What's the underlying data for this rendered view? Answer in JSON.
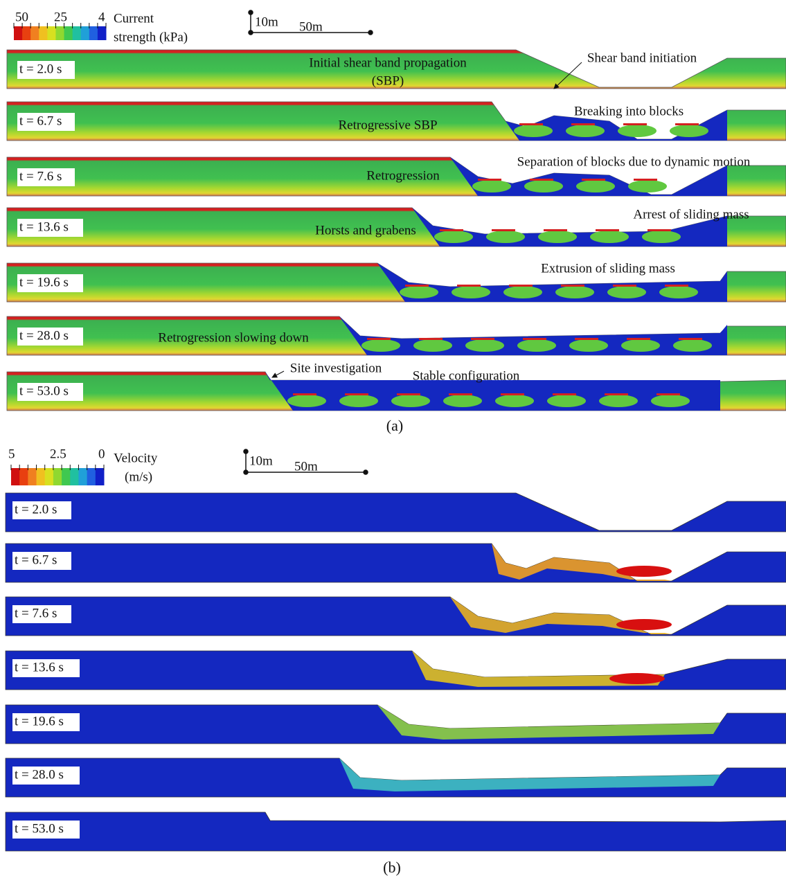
{
  "panel_a": {
    "legend": {
      "ticks": [
        "50",
        "25",
        "4"
      ],
      "title": [
        "Current",
        "strength (kPa)"
      ]
    },
    "scale": {
      "vertical": "10m",
      "horizontal": "50m"
    },
    "frames": [
      {
        "time": "t = 2.0 s",
        "annotations": [
          "Initial shear band propagation",
          "(SBP)",
          "Shear band initiation"
        ]
      },
      {
        "time": "t = 6.7 s",
        "annotations": [
          "Breaking into blocks",
          "Retrogressive SBP"
        ]
      },
      {
        "time": "t = 7.6 s",
        "annotations": [
          "Separation of blocks due to dynamic motion",
          "Retrogression"
        ]
      },
      {
        "time": "t = 13.6 s",
        "annotations": [
          "Arrest of sliding mass",
          "Horsts and grabens"
        ]
      },
      {
        "time": "t = 19.6 s",
        "annotations": [
          "Extrusion of sliding mass"
        ]
      },
      {
        "time": "t = 28.0 s",
        "annotations": [
          "Retrogression slowing down"
        ]
      },
      {
        "time": "t = 53.0 s",
        "annotations": [
          "Site investigation",
          "Stable configuration"
        ]
      }
    ],
    "label": "(a)"
  },
  "panel_b": {
    "legend": {
      "ticks": [
        "5",
        "2.5",
        "0"
      ],
      "title": [
        "Velocity",
        "(m/s)"
      ]
    },
    "scale": {
      "vertical": "10m",
      "horizontal": "50m"
    },
    "frames": [
      {
        "time": "t = 2.0 s"
      },
      {
        "time": "t = 6.7 s"
      },
      {
        "time": "t = 7.6 s"
      },
      {
        "time": "t = 13.6 s"
      },
      {
        "time": "t = 19.6 s"
      },
      {
        "time": "t = 28.0 s"
      },
      {
        "time": "t = 53.0 s"
      }
    ],
    "label": "(b)"
  }
}
